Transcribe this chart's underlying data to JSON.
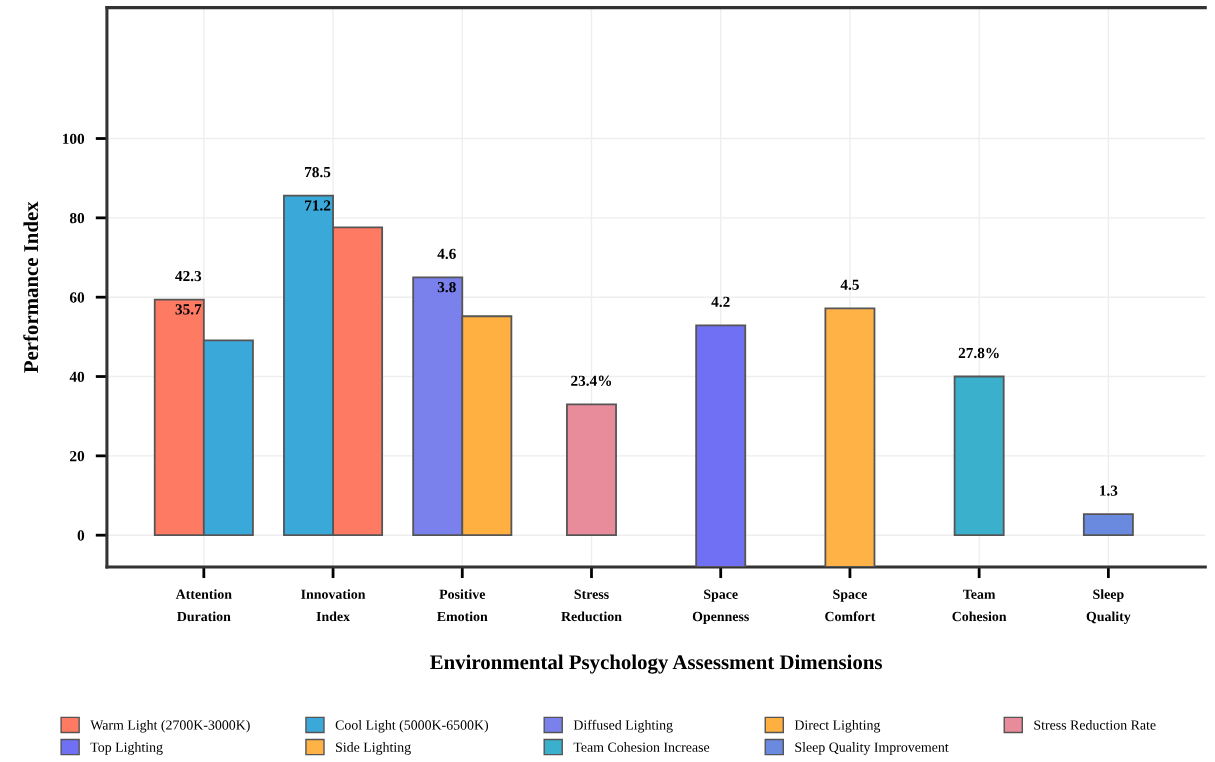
{
  "chart_data": {
    "type": "bar",
    "xlabel": "Environmental Psychology Assessment Dimensions",
    "ylabel": "Performance Index",
    "categories": [
      "Attention\nDuration",
      "Innovation\nIndex",
      "Positive\nEmotion",
      "Stress\nReduction",
      "Space\nOpenness",
      "Space\nComfort",
      "Team\nCohesion",
      "Sleep\nQuality"
    ],
    "series": [
      {
        "name": "Warm Light (2700K-3000K)",
        "color": "#ff7a62",
        "values": [
          59.4,
          77.6,
          null,
          null,
          null,
          null,
          null,
          null
        ]
      },
      {
        "name": "Cool Light (5000K-6500K)",
        "color": "#3aa8d8",
        "values": [
          49.1,
          85.6,
          null,
          null,
          null,
          null,
          null,
          null
        ]
      },
      {
        "name": "Diffused Lighting",
        "color": "#7a80ec",
        "values": [
          null,
          null,
          65.0,
          null,
          null,
          null,
          null,
          null
        ]
      },
      {
        "name": "Direct Lighting",
        "color": "#ffb040",
        "values": [
          null,
          null,
          55.2,
          null,
          null,
          null,
          null,
          null
        ]
      },
      {
        "name": "Stress Reduction Rate",
        "color": "#e88c9c",
        "values": [
          null,
          null,
          null,
          33.0,
          null,
          null,
          null,
          null
        ]
      },
      {
        "name": "Top Lighting",
        "color": "#7070f4",
        "base": [
          null,
          null,
          null,
          null,
          -8,
          null,
          null,
          null
        ],
        "values": [
          null,
          null,
          null,
          null,
          60.9,
          null,
          null,
          null
        ]
      },
      {
        "name": "Side Lighting",
        "color": "#ffb347",
        "base": [
          null,
          null,
          null,
          null,
          null,
          -8,
          null,
          null
        ],
        "values": [
          null,
          null,
          null,
          null,
          null,
          65.2,
          null,
          null
        ]
      },
      {
        "name": "Team Cohesion Increase",
        "color": "#3ab0cc",
        "values": [
          null,
          null,
          null,
          null,
          null,
          null,
          40.0,
          null
        ]
      },
      {
        "name": "Sleep Quality Improvement",
        "color": "#6a8ae0",
        "values": [
          null,
          null,
          null,
          null,
          null,
          null,
          null,
          5.3
        ]
      }
    ],
    "annotations": [
      {
        "text": "42.3",
        "x": "Attention\nDuration",
        "y": 59.4
      },
      {
        "text": "35.7",
        "x": "Attention\nDuration",
        "y": 59.4
      },
      {
        "text": "78.5",
        "x": "Innovation\nIndex",
        "y": 85.6
      },
      {
        "text": "71.2",
        "x": "Innovation\nIndex",
        "y": 85.6
      },
      {
        "text": "4.6",
        "x": "Positive\nEmotion",
        "y": 65.0
      },
      {
        "text": "3.8",
        "x": "Positive\nEmotion",
        "y": 65.0
      },
      {
        "text": "23.4%",
        "x": "Stress\nReduction",
        "y": 33.0
      },
      {
        "text": "4.2",
        "x": "Space\nOpenness",
        "y": 52.9
      },
      {
        "text": "4.5",
        "x": "Space\nComfort",
        "y": 57.2
      },
      {
        "text": "27.8%",
        "x": "Team\nCohesion",
        "y": 40.0
      },
      {
        "text": "1.3",
        "x": "Sleep\nQuality",
        "y": 5.3
      }
    ],
    "ylim": [
      -8,
      133
    ],
    "yticks": [
      0,
      20,
      40,
      60,
      80,
      100
    ],
    "grid": true,
    "legend": "bottom"
  }
}
